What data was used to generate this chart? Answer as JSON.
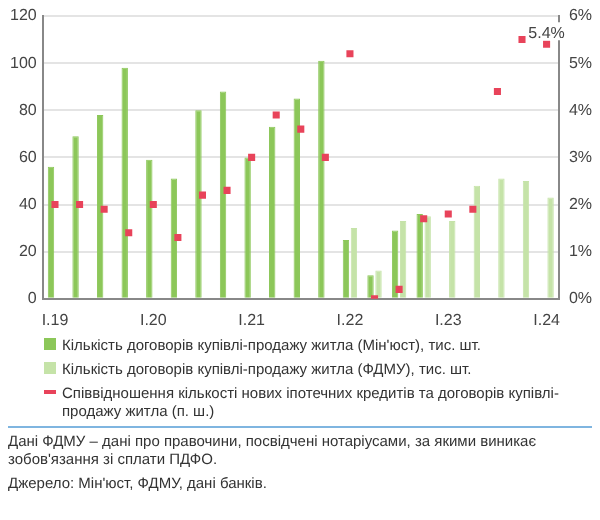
{
  "chart_data": {
    "type": "bar",
    "categories": [
      "I.19",
      null,
      null,
      null,
      "I.20",
      null,
      null,
      null,
      "I.21",
      null,
      null,
      null,
      "I.22",
      null,
      null,
      null,
      "I.23",
      null,
      null,
      null,
      "I.24"
    ],
    "series": [
      {
        "name": "Кількість договорів купівлі-продажу житла (Мін'юст), тис. шт.",
        "color": "#8cc759",
        "values": [
          56,
          69,
          78,
          98,
          59,
          51,
          80,
          88,
          60,
          73,
          85,
          101,
          25,
          10,
          29,
          36,
          null,
          null,
          null,
          null,
          null
        ]
      },
      {
        "name": "Кількість договорів купівлі-продажу житла (ФДМУ), тис. шт.",
        "color": "#c5e3a8",
        "values": [
          null,
          null,
          null,
          null,
          null,
          null,
          null,
          null,
          null,
          null,
          null,
          null,
          30,
          12,
          33,
          35,
          33,
          48,
          51,
          50,
          43
        ]
      },
      {
        "name": "Співвідношення кількості нових іпотечних кредитів та договорів купівлі-продажу житла (п. ш.)",
        "type": "scatter",
        "axis": "y2",
        "color": "#e8435a",
        "marker": "square",
        "values": [
          2.0,
          2.0,
          1.9,
          1.4,
          2.0,
          1.3,
          2.2,
          2.3,
          3.0,
          3.9,
          3.6,
          3.0,
          5.2,
          0.0,
          0.2,
          1.7,
          1.8,
          1.9,
          4.4,
          5.5,
          5.4
        ],
        "value_labels": [
          null,
          null,
          null,
          null,
          null,
          null,
          null,
          null,
          null,
          null,
          null,
          null,
          null,
          null,
          null,
          null,
          null,
          null,
          null,
          null,
          "5.4%"
        ]
      }
    ],
    "ylim": [
      0,
      120
    ],
    "yticks": [
      0,
      20,
      40,
      60,
      80,
      100,
      120
    ],
    "y2lim": [
      0,
      6
    ],
    "y2ticks": [
      {
        "value": 0,
        "label": "0%"
      },
      {
        "value": 1,
        "label": "1%"
      },
      {
        "value": 2,
        "label": "2%"
      },
      {
        "value": 3,
        "label": "3%"
      },
      {
        "value": 4,
        "label": "4%"
      },
      {
        "value": 5,
        "label": "5%"
      },
      {
        "value": 6,
        "label": "6%"
      }
    ],
    "grid": "y",
    "legend": "bottom",
    "annotations": [
      "Дані ФДМУ – дані про правочини, посвідчені нотаріусами, за якими виникає зобов'язання зі сплати ПДФО.",
      "Джерело: Мін'юст, ФДМУ, дані банків."
    ]
  }
}
